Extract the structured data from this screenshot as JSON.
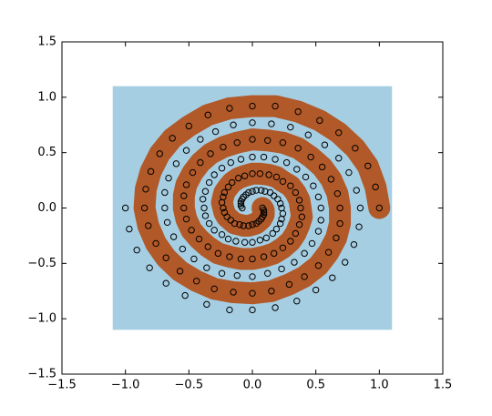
{
  "chart_data": {
    "type": "scatter",
    "xlim": [
      -1.5,
      1.5
    ],
    "ylim": [
      -1.5,
      1.5
    ],
    "xticks": [
      {
        "value": -1.5,
        "label": "−1.5"
      },
      {
        "value": -1.0,
        "label": "−1.0"
      },
      {
        "value": -0.5,
        "label": "−0.5"
      },
      {
        "value": 0,
        "label": "0.0"
      },
      0.5,
      {
        "value": 1,
        "label": "1.0"
      },
      1.5
    ],
    "yticks": [
      {
        "value": -1.5,
        "label": "−1.5"
      },
      {
        "value": -1.0,
        "label": "−1.0"
      },
      {
        "value": -0.5,
        "label": "−0.5"
      },
      {
        "value": 0,
        "label": "0.0"
      },
      0.5,
      {
        "value": 1,
        "label": "1.0"
      },
      1.5
    ],
    "surface": {
      "xlim": [
        -1.1,
        1.1
      ],
      "ylim": [
        -1.1,
        1.1
      ]
    },
    "marker_edge": "#000000",
    "series": [
      {
        "color": "#b15928",
        "x": [
          1.0,
          0.97,
          0.91,
          0.81,
          0.68,
          0.53,
          0.36,
          0.18,
          0,
          -0.18,
          -0.35,
          -0.5,
          -0.63,
          -0.73,
          -0.8,
          -0.84,
          -0.85,
          -0.82,
          -0.76,
          -0.68,
          -0.57,
          -0.44,
          -0.3,
          -0.15,
          0,
          0.15,
          0.29,
          0.41,
          0.52,
          0.6,
          0.66,
          0.69,
          0.69,
          0.67,
          0.62,
          0.55,
          0.46,
          0.36,
          0.24,
          0.12,
          0,
          -0.12,
          -0.23,
          -0.33,
          -0.41,
          -0.47,
          -0.52,
          -0.54,
          -0.54,
          -0.52,
          -0.48,
          -0.42,
          -0.35,
          -0.27,
          -0.18,
          -0.09,
          0,
          0.09,
          0.17,
          0.24,
          0.3,
          0.34,
          0.37,
          0.39,
          0.38,
          0.37,
          0.34,
          0.3,
          0.24,
          0.19,
          0.13,
          0.06,
          0,
          -0.06,
          -0.11,
          -0.16,
          -0.19,
          -0.22,
          -0.23,
          -0.24,
          -0.23,
          -0.22,
          -0.2,
          -0.17,
          -0.14,
          -0.1,
          -0.07,
          -0.03,
          0,
          0.03,
          0.05,
          0.07,
          0.08,
          0.09,
          0.09,
          0.09,
          0.08
        ],
        "values": [
          0,
          0.19,
          0.38,
          0.54,
          0.68,
          0.79,
          0.87,
          0.92,
          0.92,
          0.9,
          0.84,
          0.74,
          0.63,
          0.49,
          0.33,
          0.17,
          0,
          -0.16,
          -0.32,
          -0.45,
          -0.57,
          -0.66,
          -0.73,
          -0.76,
          -0.77,
          -0.75,
          -0.69,
          -0.62,
          -0.52,
          -0.4,
          -0.27,
          -0.14,
          0,
          0.13,
          0.26,
          0.37,
          0.46,
          0.54,
          0.59,
          0.61,
          0.62,
          0.59,
          0.55,
          0.49,
          0.41,
          0.32,
          0.21,
          0.11,
          0,
          -0.1,
          -0.2,
          -0.28,
          -0.35,
          -0.41,
          -0.44,
          -0.46,
          -0.46,
          -0.44,
          -0.41,
          -0.36,
          -0.3,
          -0.23,
          -0.15,
          -0.08,
          0,
          0.07,
          0.14,
          0.2,
          0.24,
          0.28,
          0.3,
          0.31,
          0.31,
          0.29,
          0.27,
          0.23,
          0.19,
          0.14,
          0.1,
          0.05,
          0,
          -0.04,
          -0.08,
          -0.11,
          -0.14,
          -0.15,
          -0.16,
          -0.16,
          -0.15,
          -0.14,
          -0.12,
          -0.1,
          -0.08,
          -0.06,
          -0.04,
          -0.02,
          0
        ]
      },
      {
        "color": "#a6cee3",
        "x": [
          -1.0,
          -0.97,
          -0.91,
          -0.81,
          -0.68,
          -0.53,
          -0.36,
          -0.18,
          0,
          0.18,
          0.35,
          0.5,
          0.63,
          0.73,
          0.8,
          0.84,
          0.85,
          0.82,
          0.76,
          0.68,
          0.57,
          0.44,
          0.3,
          0.15,
          0,
          -0.15,
          -0.29,
          -0.41,
          -0.52,
          -0.6,
          -0.66,
          -0.69,
          -0.69,
          -0.67,
          -0.62,
          -0.55,
          -0.46,
          -0.36,
          -0.24,
          -0.12,
          0,
          0.12,
          0.23,
          0.33,
          0.41,
          0.47,
          0.52,
          0.54,
          0.54,
          0.52,
          0.48,
          0.42,
          0.35,
          0.27,
          0.18,
          0.09,
          0,
          -0.09,
          -0.17,
          -0.24,
          -0.3,
          -0.34,
          -0.37,
          -0.39,
          -0.38,
          -0.37,
          -0.34,
          -0.3,
          -0.24,
          -0.19,
          -0.13,
          -0.06,
          0,
          0.06,
          0.11,
          0.16,
          0.19,
          0.22,
          0.23,
          0.24,
          0.23,
          0.22,
          0.2,
          0.17,
          0.14,
          0.1,
          0.07,
          0.03,
          0,
          -0.03,
          -0.05,
          -0.07,
          -0.08,
          -0.09,
          -0.09,
          -0.09,
          -0.08
        ],
        "values": [
          0,
          -0.19,
          -0.38,
          -0.54,
          -0.68,
          -0.79,
          -0.87,
          -0.92,
          -0.92,
          -0.9,
          -0.84,
          -0.74,
          -0.63,
          -0.49,
          -0.33,
          -0.17,
          0,
          0.16,
          0.32,
          0.45,
          0.57,
          0.66,
          0.73,
          0.76,
          0.77,
          0.75,
          0.69,
          0.62,
          0.52,
          0.4,
          0.27,
          0.14,
          0,
          -0.13,
          -0.26,
          -0.37,
          -0.46,
          -0.54,
          -0.59,
          -0.61,
          -0.62,
          -0.59,
          -0.55,
          -0.49,
          -0.41,
          -0.32,
          -0.21,
          -0.11,
          0,
          0.1,
          0.2,
          0.28,
          0.35,
          0.41,
          0.44,
          0.46,
          0.46,
          0.44,
          0.41,
          0.36,
          0.3,
          0.23,
          0.15,
          0.08,
          0,
          -0.07,
          -0.14,
          -0.2,
          -0.24,
          -0.28,
          -0.3,
          -0.31,
          -0.31,
          -0.29,
          -0.27,
          -0.23,
          -0.19,
          -0.14,
          -0.1,
          -0.05,
          0,
          0.04,
          0.08,
          0.11,
          0.14,
          0.15,
          0.16,
          0.16,
          0.15,
          0.14,
          0.12,
          0.1,
          0.08,
          0.06,
          0.04,
          0.02,
          0
        ]
      }
    ]
  }
}
